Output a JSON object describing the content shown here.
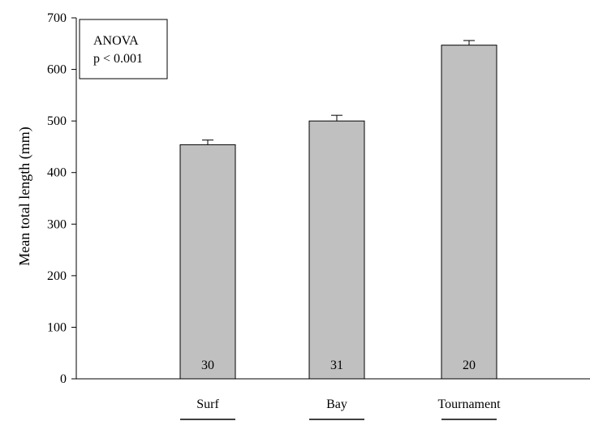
{
  "chart_data": {
    "type": "bar",
    "title": "",
    "xlabel": "",
    "ylabel": "Mean total length (mm)",
    "categories": [
      "Surf",
      "Bay",
      "Tournament"
    ],
    "values": [
      454,
      500,
      647
    ],
    "error": [
      9,
      11,
      9
    ],
    "n_labels": [
      "30",
      "31",
      "20"
    ],
    "ylim": [
      0,
      700
    ],
    "yticks": [
      0,
      100,
      200,
      300,
      400,
      500,
      600,
      700
    ],
    "grid": false,
    "annotation": {
      "line1": "ANOVA",
      "line2": "p < 0.001",
      "placement": "top-left"
    },
    "colors": {
      "bar_fill": "#c0c0c0",
      "bar_stroke": "#000000",
      "axis": "#000000"
    }
  }
}
